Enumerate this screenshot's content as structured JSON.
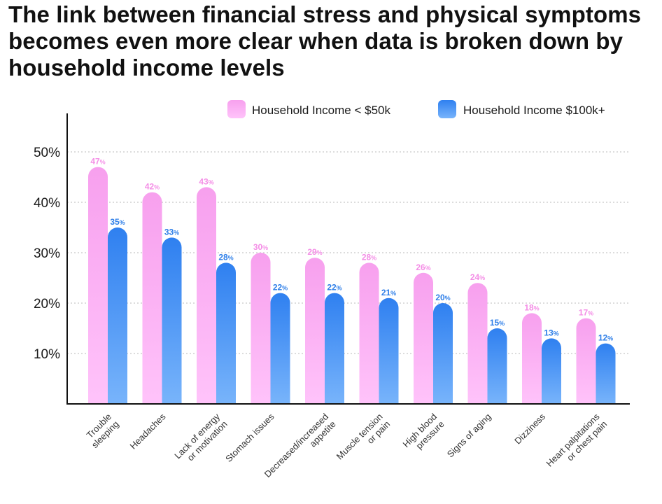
{
  "chart_data": {
    "type": "bar",
    "title": "The link between financial stress and physical symptoms becomes even more clear when data is broken down by household income levels",
    "categories": [
      [
        "Trouble",
        "sleeping"
      ],
      [
        "Headaches"
      ],
      [
        "Lack of energy",
        "or motivation"
      ],
      [
        "Stomach issues"
      ],
      [
        "Decreased/increased",
        "appetite"
      ],
      [
        "Muscle tension",
        "or pain"
      ],
      [
        "High blood",
        "pressure"
      ],
      [
        "Signs of aging"
      ],
      [
        "Dizziness"
      ],
      [
        "Heart palpitations",
        "or chest pain"
      ]
    ],
    "series": [
      {
        "name": "Household Income < $50k",
        "color_top": "#f7a0ee",
        "color_bottom": "#ffc3fa",
        "label_color": "#f48ee6",
        "values": [
          47,
          42,
          43,
          30,
          29,
          28,
          26,
          24,
          18,
          17
        ]
      },
      {
        "name": "Household Income $100k+",
        "color_top": "#2f80f0",
        "color_bottom": "#78b4fb",
        "label_color": "#2f7fe8",
        "values": [
          35,
          33,
          28,
          22,
          22,
          21,
          20,
          15,
          13,
          12
        ]
      }
    ],
    "value_suffix": "%",
    "yticks": [
      "10%",
      "20%",
      "30%",
      "40%",
      "50%"
    ],
    "ytick_values": [
      10,
      20,
      30,
      40,
      50
    ],
    "ylim": [
      0,
      57
    ],
    "grid": true,
    "legend_position": "top-right",
    "xlabel": "",
    "ylabel": ""
  }
}
